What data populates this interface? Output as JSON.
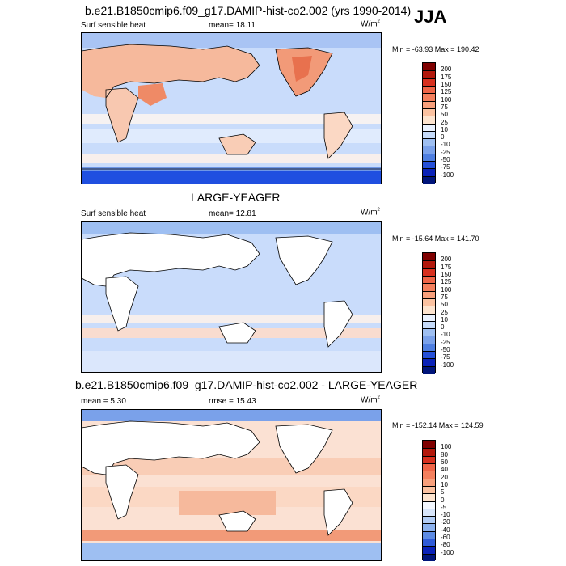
{
  "season": "JJA",
  "panels": [
    {
      "title": "b.e21.B1850cmip6.f09_g17.DAMIP-hist-co2.002 (yrs 1990-2014)",
      "variable": "Surf sensible heat",
      "stat_text": "mean=  18.11",
      "units": "W/m",
      "units_sup": "2",
      "minmax": "Min = -63.93 Max = 190.42",
      "colorbar": {
        "labels": [
          "200",
          "175",
          "150",
          "125",
          "100",
          "75",
          "50",
          "25",
          "10",
          "0",
          "-10",
          "-25",
          "-50",
          "-75",
          "-100"
        ],
        "colors": [
          "#7f0000",
          "#b2180c",
          "#d7301f",
          "#ef6548",
          "#f4805e",
          "#f8a07c",
          "#fbc2a1",
          "#fde4cf",
          "#eaf2ff",
          "#c6dbfa",
          "#9ebff2",
          "#7aa1ea",
          "#4e7ee0",
          "#2650d8",
          "#0a22b8",
          "#00157a"
        ]
      }
    },
    {
      "title": "LARGE-YEAGER",
      "variable": "Surf sensible heat",
      "stat_text": "mean=  12.81",
      "units": "W/m",
      "units_sup": "2",
      "minmax": "Min = -15.64 Max = 141.70",
      "colorbar": {
        "labels": [
          "200",
          "175",
          "150",
          "125",
          "100",
          "75",
          "50",
          "25",
          "10",
          "0",
          "-10",
          "-25",
          "-50",
          "-75",
          "-100"
        ],
        "colors": [
          "#7f0000",
          "#b2180c",
          "#d7301f",
          "#ef6548",
          "#f4805e",
          "#f8a07c",
          "#fbc2a1",
          "#fde4cf",
          "#eaf2ff",
          "#c6dbfa",
          "#9ebff2",
          "#7aa1ea",
          "#4e7ee0",
          "#2650d8",
          "#0a22b8",
          "#00157a"
        ]
      }
    },
    {
      "title": "b.e21.B1850cmip6.f09_g17.DAMIP-hist-co2.002 - LARGE-YEAGER",
      "variable": "mean =   5.30",
      "stat_text": "rmse =   15.43",
      "units": "W/m",
      "units_sup": "2",
      "minmax": "Min = -152.14 Max = 124.59",
      "colorbar": {
        "labels": [
          "100",
          "80",
          "60",
          "40",
          "20",
          "10",
          "5",
          "0",
          "-5",
          "-10",
          "-20",
          "-40",
          "-60",
          "-80",
          "-100"
        ],
        "colors": [
          "#7f0000",
          "#b2180c",
          "#d7301f",
          "#ef6548",
          "#f4805e",
          "#f8a07c",
          "#fbc2a1",
          "#fde4cf",
          "#f4f8ff",
          "#d8e6fb",
          "#b2cdf5",
          "#8cb2ee",
          "#5d8be3",
          "#2f5bd8",
          "#0a22b8",
          "#00157a"
        ]
      }
    }
  ]
}
